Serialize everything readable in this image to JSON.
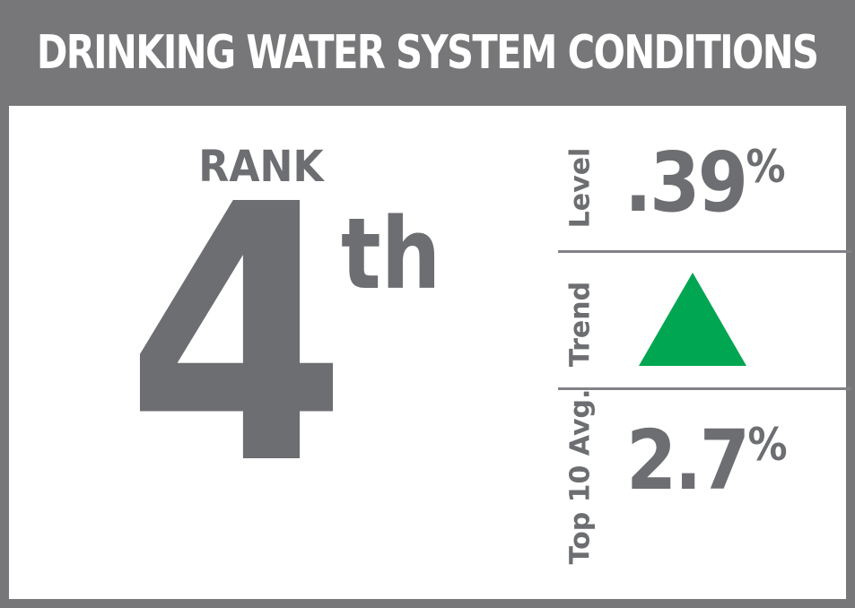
{
  "title": "DRINKING WATER SYSTEM CONDITIONS",
  "rank": {
    "label": "RANK",
    "number": "4",
    "suffix": "th"
  },
  "stats": {
    "level": {
      "label": "Level",
      "value": ".39",
      "unit": "%"
    },
    "trend": {
      "label": "Trend",
      "icon": "up-triangle-icon",
      "color": "#00a651"
    },
    "top10": {
      "label": "Top 10 Avg.",
      "value": "2.7",
      "unit": "%"
    }
  },
  "colors": {
    "frame": "#777779",
    "text": "#6d6e71",
    "trend_up": "#00a651"
  }
}
